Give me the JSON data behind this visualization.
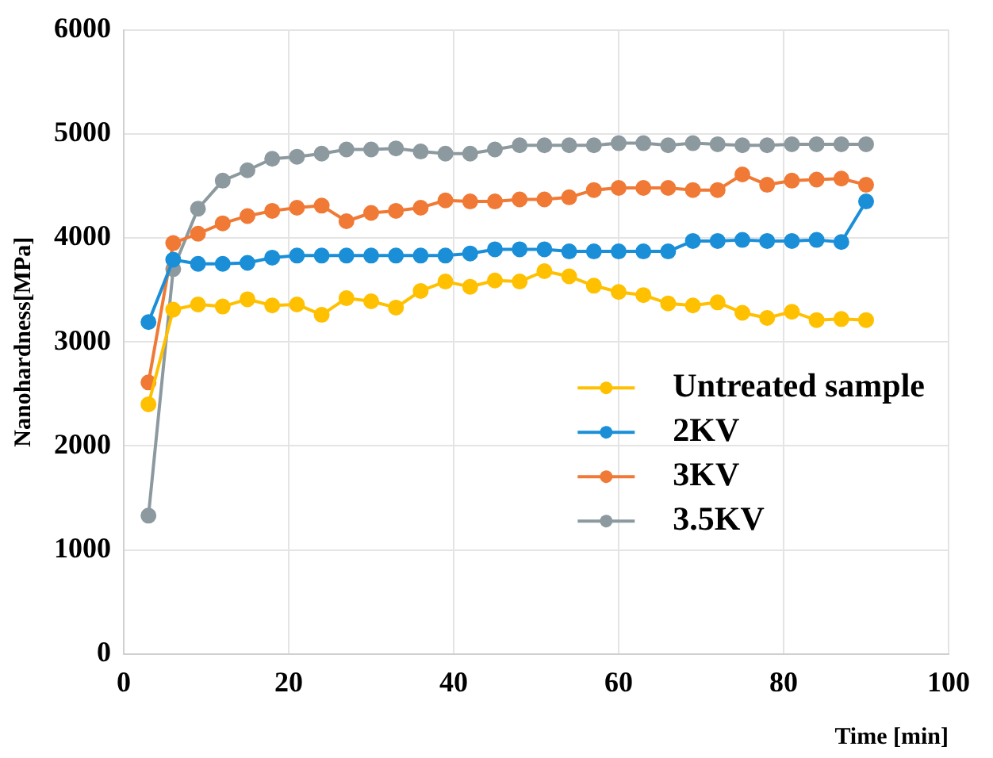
{
  "chart_data": {
    "type": "line",
    "xlabel": "Time [min]",
    "ylabel": "Nanohardness[MPa]",
    "x": [
      3,
      6,
      9,
      12,
      15,
      18,
      21,
      24,
      27,
      30,
      33,
      36,
      39,
      42,
      45,
      48,
      51,
      54,
      57,
      60,
      63,
      66,
      69,
      72,
      75,
      78,
      81,
      84,
      87,
      90
    ],
    "series": [
      {
        "name": "Untreated sample",
        "color": "#ffc000",
        "values": [
          2400,
          3310,
          3360,
          3340,
          3410,
          3350,
          3360,
          3260,
          3420,
          3390,
          3330,
          3490,
          3580,
          3530,
          3590,
          3580,
          3680,
          3630,
          3540,
          3480,
          3450,
          3370,
          3350,
          3380,
          3280,
          3230,
          3290,
          3210,
          3220,
          3210
        ]
      },
      {
        "name": "2KV",
        "color": "#1a8fd8",
        "values": [
          3190,
          3790,
          3750,
          3750,
          3760,
          3810,
          3830,
          3830,
          3830,
          3830,
          3830,
          3830,
          3830,
          3850,
          3890,
          3890,
          3890,
          3870,
          3870,
          3870,
          3870,
          3870,
          3970,
          3970,
          3980,
          3970,
          3970,
          3980,
          3960,
          4350
        ]
      },
      {
        "name": "3KV",
        "color": "#f07a35",
        "values": [
          2610,
          3950,
          4040,
          4140,
          4210,
          4260,
          4290,
          4310,
          4160,
          4240,
          4260,
          4290,
          4360,
          4350,
          4350,
          4370,
          4370,
          4390,
          4460,
          4480,
          4480,
          4480,
          4460,
          4460,
          4610,
          4510,
          4550,
          4560,
          4570,
          4510
        ]
      },
      {
        "name": "3.5KV",
        "color": "#8c9aa0",
        "values": [
          1330,
          3700,
          4280,
          4550,
          4650,
          4760,
          4780,
          4810,
          4850,
          4850,
          4860,
          4830,
          4810,
          4810,
          4850,
          4890,
          4890,
          4890,
          4890,
          4910,
          4910,
          4890,
          4910,
          4900,
          4890,
          4890,
          4900,
          4900,
          4900,
          4900
        ]
      }
    ],
    "xlim": [
      0,
      100
    ],
    "xticks": [
      0,
      20,
      40,
      60,
      80,
      100
    ],
    "ylim": [
      0,
      6000
    ],
    "yticks": [
      0,
      1000,
      2000,
      3000,
      4000,
      5000,
      6000
    ],
    "grid": true,
    "legend": "right",
    "marker": "circle",
    "line_style": "solid"
  }
}
